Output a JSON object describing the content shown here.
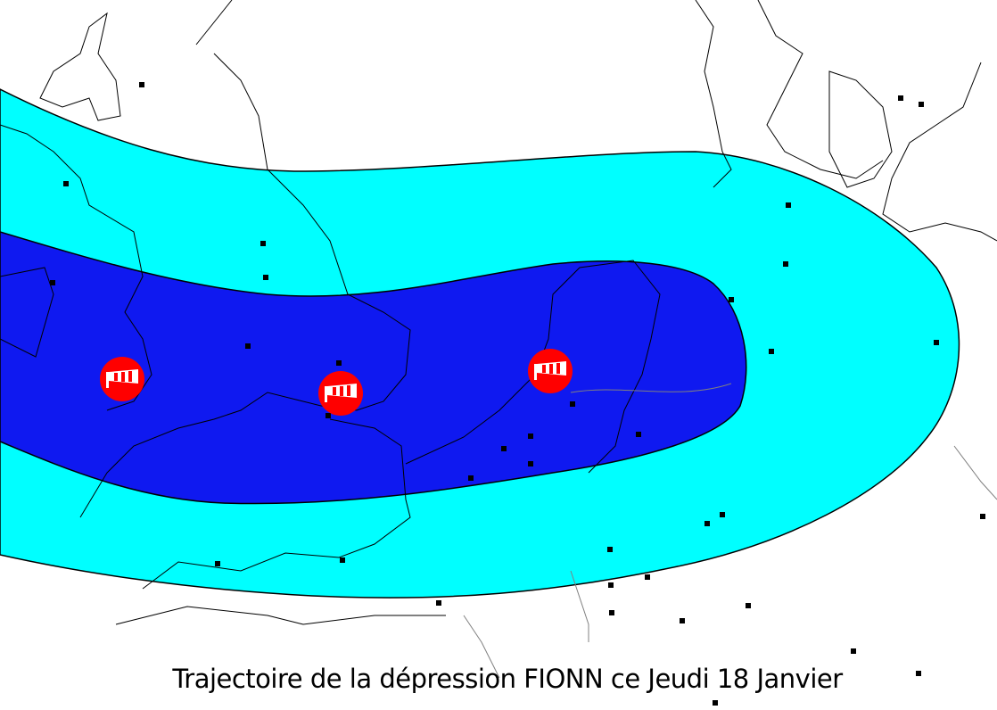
{
  "caption": "Trajectoire de la dépression FIONN ce Jeudi 18 Janvier",
  "legend_colors": {
    "outer_zone": "#00ffff",
    "inner_zone": "#0f19f0",
    "marker": "#ff0000"
  },
  "markers": [
    {
      "icon": "windsock-icon"
    },
    {
      "icon": "windsock-icon"
    },
    {
      "icon": "windsock-icon"
    }
  ]
}
